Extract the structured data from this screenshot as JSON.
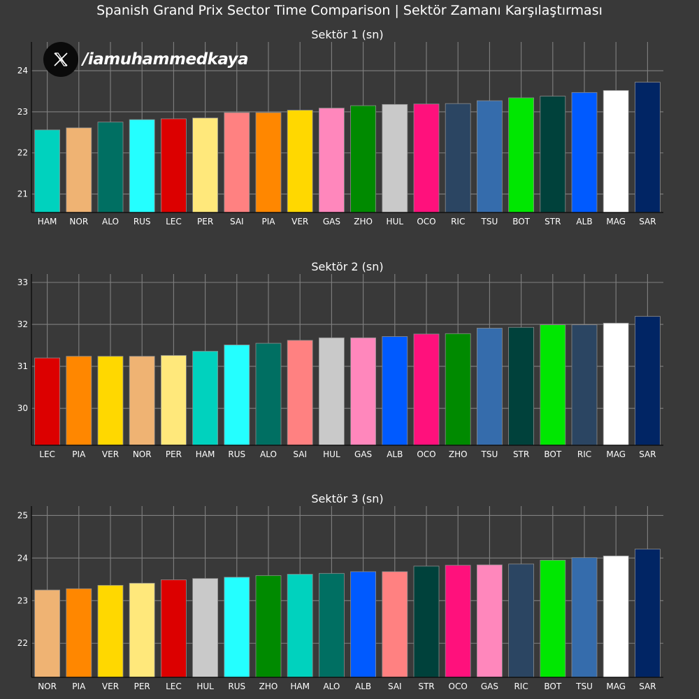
{
  "title": "Spanish Grand Prix Sector Time Comparison | Sektör Zamanı Karşılaştırması",
  "watermark": {
    "icon": "x-logo-icon",
    "handle": "/iamuhammedkaya"
  },
  "colors": {
    "background": "#393939",
    "grid": "#808080",
    "axis": "#111111",
    "text": "#ffffff"
  },
  "driver_colors": {
    "HAM": "#00D2BE",
    "NOR": "#EFB373",
    "ALO": "#006F62",
    "RUS": "#24FFFF",
    "LEC": "#DC0000",
    "PER": "#FFE87B",
    "SAI": "#FF8181",
    "PIA": "#FF8700",
    "VER": "#FFD800",
    "GAS": "#FF87BC",
    "ZHO": "#008A00",
    "HUL": "#C9C9C9",
    "OCO": "#FF117C",
    "RIC": "#2B4562",
    "TSU": "#356CAC",
    "BOT": "#00E701",
    "STR": "#00413B",
    "ALB": "#005AFF",
    "MAG": "#FFFFFF",
    "SAR": "#012564"
  },
  "chart_data": [
    {
      "type": "bar",
      "title": "Sektör 1 (sn)",
      "categories": [
        "HAM",
        "NOR",
        "ALO",
        "RUS",
        "LEC",
        "PER",
        "SAI",
        "PIA",
        "VER",
        "GAS",
        "ZHO",
        "HUL",
        "OCO",
        "RIC",
        "TSU",
        "BOT",
        "STR",
        "ALB",
        "MAG",
        "SAR"
      ],
      "values": [
        22.56,
        22.61,
        22.75,
        22.81,
        22.83,
        22.85,
        22.98,
        22.98,
        23.04,
        23.09,
        23.15,
        23.18,
        23.19,
        23.2,
        23.27,
        23.34,
        23.38,
        23.47,
        23.52,
        23.72
      ],
      "yticks": [
        21,
        22,
        23,
        24
      ],
      "ylim": [
        20.55,
        24.7
      ],
      "grid": true
    },
    {
      "type": "bar",
      "title": "Sektör 2 (sn)",
      "categories": [
        "LEC",
        "PIA",
        "VER",
        "NOR",
        "PER",
        "HAM",
        "RUS",
        "ALO",
        "SAI",
        "HUL",
        "GAS",
        "ALB",
        "OCO",
        "ZHO",
        "TSU",
        "STR",
        "BOT",
        "RIC",
        "MAG",
        "SAR"
      ],
      "values": [
        31.2,
        31.24,
        31.24,
        31.24,
        31.26,
        31.36,
        31.51,
        31.55,
        31.62,
        31.68,
        31.68,
        31.71,
        31.77,
        31.78,
        31.91,
        31.93,
        31.99,
        31.99,
        32.03,
        32.19
      ],
      "yticks": [
        30,
        31,
        32,
        33
      ],
      "ylim": [
        29.12,
        33.2
      ],
      "grid": true
    },
    {
      "type": "bar",
      "title": "Sektör 3 (sn)",
      "categories": [
        "NOR",
        "PIA",
        "VER",
        "PER",
        "LEC",
        "HUL",
        "RUS",
        "ZHO",
        "HAM",
        "ALO",
        "ALB",
        "SAI",
        "STR",
        "OCO",
        "GAS",
        "RIC",
        "BOT",
        "TSU",
        "MAG",
        "SAR"
      ],
      "values": [
        23.25,
        23.28,
        23.36,
        23.41,
        23.49,
        23.52,
        23.55,
        23.59,
        23.62,
        23.64,
        23.68,
        23.68,
        23.81,
        23.83,
        23.84,
        23.86,
        23.95,
        24.01,
        24.05,
        24.21
      ],
      "yticks": [
        22,
        23,
        24,
        25
      ],
      "ylim": [
        21.2,
        25.22
      ],
      "grid": true
    }
  ]
}
